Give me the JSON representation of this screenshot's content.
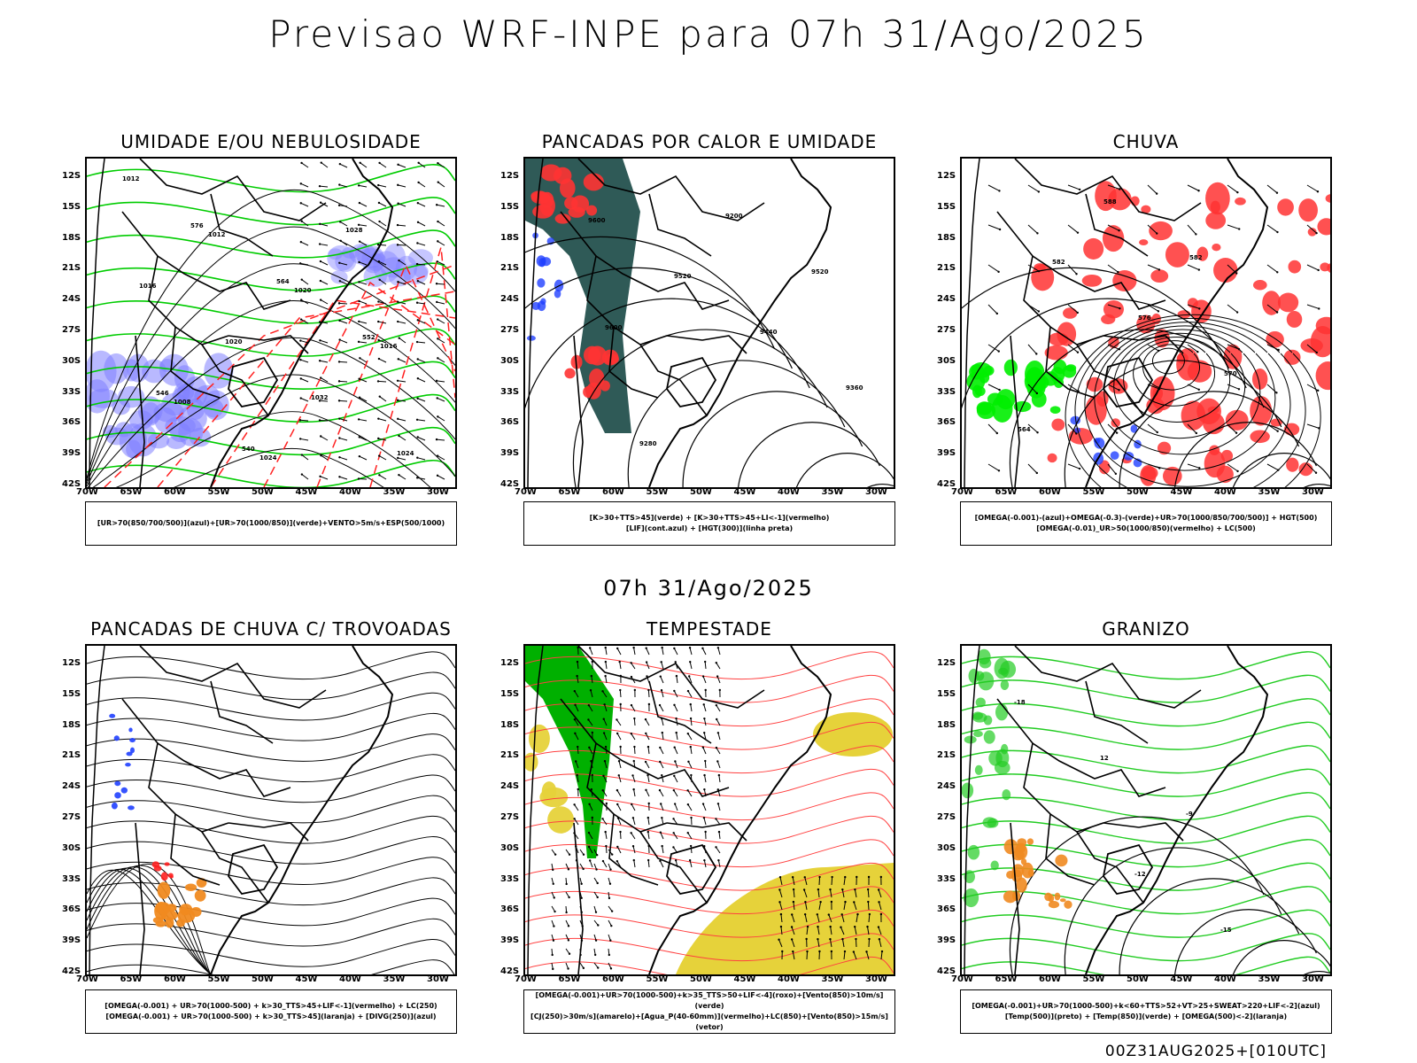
{
  "header": {
    "title": "Previsao WRF-INPE  para 07h 31/Ago/2025",
    "mid_title": "07h 31/Ago/2025",
    "footer": "00Z31AUG2025+[010UTC]"
  },
  "axes": {
    "lat_labels": [
      "12S",
      "15S",
      "18S",
      "21S",
      "24S",
      "27S",
      "30S",
      "33S",
      "36S",
      "39S",
      "42S"
    ],
    "lon_labels": [
      "70W",
      "65W",
      "60W",
      "55W",
      "50W",
      "45W",
      "40W",
      "35W",
      "30W"
    ]
  },
  "panels": [
    {
      "title": "UMIDADE E/OU NEBULOSIDADE",
      "legend": [
        "[UR>70(850/700/500)](azul)+[UR>70(1000/850)](verde)+VENTO>5m/s+ESP(500/1000)"
      ],
      "contour_labels": [
        "1012",
        "1012",
        "1020",
        "1016",
        "1008",
        "1024",
        "1028",
        "1016",
        "1020",
        "1032",
        "1024",
        "576",
        "564",
        "552",
        "546",
        "540"
      ],
      "colors": {
        "blue": "#8080ff",
        "green": "#00cc00",
        "red": "#ff2020"
      }
    },
    {
      "title": "PANCADAS POR CALOR E UMIDADE",
      "legend": [
        "[K>30+TTS>45](verde) + [K>30+TTS>45+LI<-1](vermelho)",
        "[LIF](cont.azul) + [HGT(300)](linha preta)"
      ],
      "contour_labels": [
        "9600",
        "9520",
        "9440",
        "9360",
        "9280",
        "9200",
        "9520",
        "9600"
      ],
      "colors": {
        "teal": "#2f5a57",
        "red": "#ff3333",
        "blue": "#2040ff"
      }
    },
    {
      "title": "CHUVA",
      "legend": [
        "[OMEGA(-0.001)-(azul)+OMEGA(-0.3)-(verde)+UR>70(1000/850/700/500)] + HGT(500)",
        "[OMEGA(-0.01)_UR>50(1000/850)(vermelho) + LC(500)"
      ],
      "contour_labels": [
        "582",
        "576",
        "570",
        "564",
        "588",
        "582"
      ],
      "colors": {
        "red": "#ff3333",
        "green": "#00ee00",
        "blue": "#2040ff"
      }
    },
    {
      "title": "PANCADAS DE CHUVA C/ TROVOADAS",
      "legend": [
        "[OMEGA(-0.001) + UR>70(1000-500) + k>30_TTS>45+LIF<-1](vermelho) + LC(250)",
        "[OMEGA(-0.001) + UR>70(1000-500) + k>30_TTS>45](laranja) + [DIVG(250)](azul)"
      ],
      "contour_labels": [],
      "colors": {
        "orange": "#f08a20",
        "red": "#ff2020",
        "blue": "#2040ff"
      }
    },
    {
      "title": "TEMPESTADE",
      "legend": [
        "[OMEGA(-0.001)+UR>70(1000-500)+k>35_TTS>50+LIF<-4](roxo)+[Vento(850)>10m/s](verde)",
        "[CJ(250)>30m/s](amarelo)+[Agua_P(40-60mm)](vermelho)+LC(850)+[Vento(850)>15m/s](vetor)"
      ],
      "contour_labels": [],
      "colors": {
        "green": "#00b000",
        "yellow": "#e6d23a",
        "red": "#ff4040"
      }
    },
    {
      "title": "GRANIZO",
      "legend": [
        "[OMEGA(-0.001)+UR>70(1000-500)+k<60+TTS>52+VT>25+SWEAT>220+LIF<-2](azul)",
        "[Temp(500)](preto) + [Temp(850)](verde) + [OMEGA(500)<-2](laranja)"
      ],
      "contour_labels": [
        "-12",
        "-15",
        "-18",
        "12",
        "-9"
      ],
      "colors": {
        "green": "#22cc22",
        "orange": "#f08a20",
        "black": "#000000"
      }
    }
  ]
}
